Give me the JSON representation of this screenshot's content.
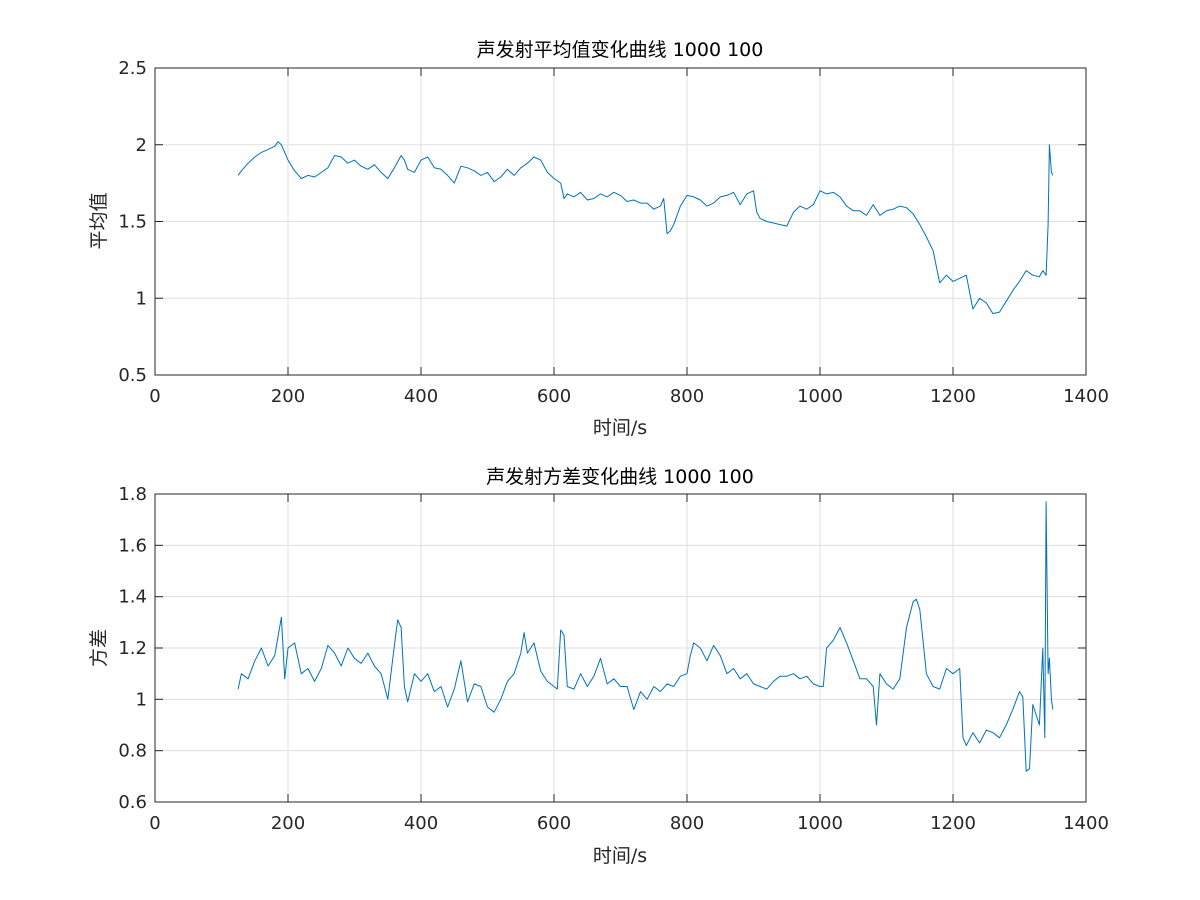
{
  "chart_data": [
    {
      "type": "line",
      "title": "声发射平均值变化曲线 1000 100",
      "xlabel": "时间/s",
      "ylabel": "平均值",
      "xlim": [
        0,
        1400
      ],
      "ylim": [
        0.5,
        2.5
      ],
      "xticks": [
        "0",
        "200",
        "400",
        "600",
        "800",
        "1000",
        "1200",
        "1400"
      ],
      "yticks": [
        "0.5",
        "1",
        "1.5",
        "2",
        "2.5"
      ],
      "grid": true,
      "line_color": "#0072bd",
      "series": [
        {
          "name": "平均值",
          "x": [
            125,
            130,
            140,
            150,
            160,
            170,
            180,
            185,
            190,
            200,
            210,
            220,
            230,
            240,
            250,
            260,
            270,
            280,
            290,
            300,
            310,
            320,
            330,
            340,
            350,
            360,
            370,
            375,
            380,
            390,
            400,
            410,
            420,
            430,
            440,
            450,
            460,
            470,
            480,
            490,
            500,
            510,
            520,
            530,
            540,
            550,
            560,
            570,
            580,
            590,
            600,
            610,
            615,
            620,
            630,
            640,
            650,
            660,
            670,
            680,
            690,
            700,
            710,
            720,
            730,
            740,
            750,
            760,
            765,
            770,
            775,
            780,
            790,
            800,
            810,
            820,
            830,
            840,
            850,
            860,
            870,
            880,
            890,
            900,
            905,
            910,
            920,
            930,
            940,
            950,
            960,
            970,
            980,
            990,
            1000,
            1010,
            1020,
            1030,
            1040,
            1050,
            1060,
            1070,
            1080,
            1090,
            1100,
            1110,
            1120,
            1130,
            1140,
            1150,
            1160,
            1170,
            1180,
            1190,
            1200,
            1210,
            1220,
            1230,
            1240,
            1250,
            1260,
            1270,
            1280,
            1290,
            1300,
            1310,
            1320,
            1330,
            1335,
            1340,
            1343,
            1345,
            1348,
            1350
          ],
          "y": [
            1.8,
            1.83,
            1.88,
            1.92,
            1.95,
            1.97,
            1.99,
            2.02,
            2.0,
            1.9,
            1.83,
            1.78,
            1.8,
            1.79,
            1.82,
            1.85,
            1.93,
            1.92,
            1.88,
            1.9,
            1.86,
            1.84,
            1.87,
            1.82,
            1.78,
            1.85,
            1.93,
            1.9,
            1.84,
            1.82,
            1.9,
            1.92,
            1.85,
            1.84,
            1.8,
            1.75,
            1.86,
            1.85,
            1.83,
            1.8,
            1.82,
            1.76,
            1.79,
            1.84,
            1.8,
            1.85,
            1.88,
            1.92,
            1.9,
            1.82,
            1.78,
            1.75,
            1.65,
            1.68,
            1.66,
            1.69,
            1.64,
            1.65,
            1.68,
            1.66,
            1.69,
            1.67,
            1.63,
            1.64,
            1.62,
            1.62,
            1.58,
            1.6,
            1.65,
            1.42,
            1.44,
            1.48,
            1.6,
            1.67,
            1.66,
            1.64,
            1.6,
            1.62,
            1.66,
            1.67,
            1.69,
            1.61,
            1.68,
            1.7,
            1.56,
            1.52,
            1.5,
            1.49,
            1.48,
            1.47,
            1.56,
            1.6,
            1.58,
            1.61,
            1.7,
            1.68,
            1.69,
            1.66,
            1.6,
            1.57,
            1.57,
            1.54,
            1.61,
            1.54,
            1.57,
            1.58,
            1.6,
            1.59,
            1.55,
            1.48,
            1.4,
            1.31,
            1.1,
            1.15,
            1.11,
            1.13,
            1.15,
            0.93,
            1.0,
            0.97,
            0.9,
            0.91,
            0.98,
            1.05,
            1.11,
            1.18,
            1.15,
            1.14,
            1.18,
            1.15,
            1.48,
            2.0,
            1.82,
            1.8
          ]
        }
      ]
    },
    {
      "type": "line",
      "title": "声发射方差变化曲线 1000 100",
      "xlabel": "时间/s",
      "ylabel": "方差",
      "xlim": [
        0,
        1400
      ],
      "ylim": [
        0.6,
        1.8
      ],
      "xticks": [
        "0",
        "200",
        "400",
        "600",
        "800",
        "1000",
        "1200",
        "1400"
      ],
      "yticks": [
        "0.6",
        "0.8",
        "1",
        "1.2",
        "1.4",
        "1.6",
        "1.8"
      ],
      "grid": true,
      "line_color": "#0072bd",
      "series": [
        {
          "name": "方差",
          "x": [
            125,
            130,
            140,
            150,
            160,
            170,
            180,
            190,
            195,
            200,
            210,
            220,
            230,
            240,
            250,
            260,
            270,
            280,
            290,
            300,
            310,
            320,
            330,
            340,
            350,
            360,
            365,
            370,
            375,
            380,
            390,
            400,
            410,
            420,
            430,
            440,
            450,
            460,
            470,
            480,
            490,
            500,
            510,
            520,
            530,
            540,
            550,
            555,
            560,
            570,
            580,
            590,
            600,
            605,
            610,
            615,
            620,
            630,
            640,
            650,
            660,
            670,
            680,
            690,
            700,
            710,
            720,
            730,
            740,
            750,
            760,
            770,
            780,
            790,
            800,
            805,
            810,
            820,
            830,
            840,
            850,
            860,
            870,
            880,
            890,
            900,
            910,
            920,
            930,
            940,
            950,
            960,
            970,
            980,
            990,
            1000,
            1005,
            1010,
            1020,
            1030,
            1040,
            1050,
            1060,
            1070,
            1080,
            1085,
            1090,
            1100,
            1110,
            1120,
            1130,
            1140,
            1145,
            1150,
            1160,
            1170,
            1180,
            1190,
            1200,
            1210,
            1215,
            1220,
            1230,
            1240,
            1250,
            1260,
            1270,
            1280,
            1290,
            1300,
            1305,
            1310,
            1315,
            1320,
            1330,
            1335,
            1338,
            1340,
            1343,
            1345,
            1348,
            1350
          ],
          "y": [
            1.04,
            1.1,
            1.08,
            1.15,
            1.2,
            1.13,
            1.17,
            1.32,
            1.08,
            1.2,
            1.22,
            1.1,
            1.12,
            1.07,
            1.12,
            1.21,
            1.18,
            1.13,
            1.2,
            1.16,
            1.14,
            1.18,
            1.13,
            1.1,
            1.0,
            1.21,
            1.31,
            1.28,
            1.05,
            0.99,
            1.1,
            1.07,
            1.1,
            1.03,
            1.05,
            0.97,
            1.04,
            1.15,
            0.99,
            1.06,
            1.05,
            0.97,
            0.95,
            1.0,
            1.07,
            1.1,
            1.18,
            1.26,
            1.18,
            1.22,
            1.11,
            1.07,
            1.05,
            1.04,
            1.27,
            1.25,
            1.05,
            1.04,
            1.1,
            1.05,
            1.09,
            1.16,
            1.06,
            1.08,
            1.05,
            1.05,
            0.96,
            1.03,
            1.0,
            1.05,
            1.03,
            1.06,
            1.05,
            1.09,
            1.1,
            1.17,
            1.22,
            1.2,
            1.15,
            1.21,
            1.17,
            1.1,
            1.12,
            1.08,
            1.1,
            1.06,
            1.05,
            1.04,
            1.07,
            1.09,
            1.09,
            1.1,
            1.08,
            1.09,
            1.06,
            1.05,
            1.05,
            1.2,
            1.23,
            1.28,
            1.22,
            1.15,
            1.08,
            1.08,
            1.05,
            0.9,
            1.1,
            1.06,
            1.04,
            1.08,
            1.28,
            1.38,
            1.39,
            1.35,
            1.1,
            1.05,
            1.04,
            1.12,
            1.1,
            1.12,
            0.85,
            0.82,
            0.87,
            0.83,
            0.88,
            0.87,
            0.85,
            0.9,
            0.96,
            1.03,
            1.01,
            0.72,
            0.73,
            0.98,
            0.9,
            1.2,
            0.85,
            1.77,
            1.1,
            1.16,
            1.0,
            0.96
          ]
        }
      ]
    }
  ]
}
